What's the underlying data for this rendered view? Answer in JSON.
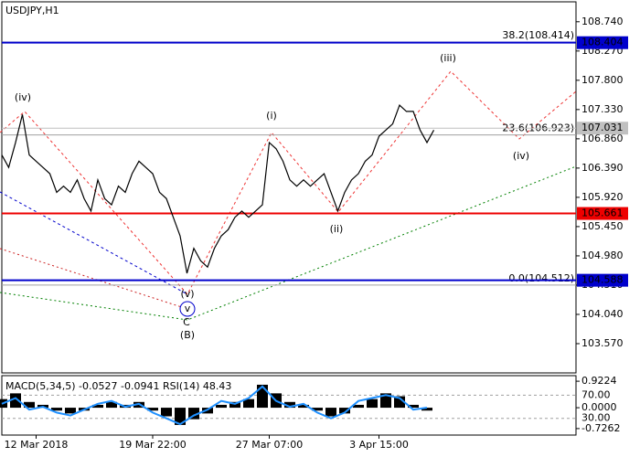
{
  "chart_data": [
    {
      "type": "line",
      "title": "USDJPY,H1",
      "categories": [
        null,
        null,
        null,
        null,
        null,
        "12 Mar 2018",
        null,
        null,
        null,
        null,
        null,
        null,
        null,
        null,
        null,
        null,
        null,
        null,
        null,
        null,
        null,
        null,
        "19 Mar 22:00",
        null,
        null,
        null,
        null,
        null,
        null,
        null,
        null,
        null,
        null,
        null,
        null,
        null,
        null,
        null,
        null,
        "27 Mar 07:00",
        null,
        null,
        null,
        null,
        null,
        null,
        null,
        null,
        null,
        null,
        null,
        null,
        null,
        null,
        null,
        "3 Apr 15:00",
        null,
        null,
        null,
        null,
        null,
        null,
        null,
        null
      ],
      "series": [
        {
          "color": "#000000",
          "values": [
            106.6,
            106.4,
            106.8,
            107.25,
            106.6,
            106.5,
            106.4,
            106.3,
            106.0,
            106.1,
            106.0,
            106.2,
            105.9,
            105.7,
            106.2,
            105.9,
            105.8,
            106.1,
            106.0,
            106.3,
            106.5,
            106.4,
            106.3,
            106.0,
            105.9,
            105.6,
            105.3,
            104.7,
            105.1,
            104.9,
            104.8,
            105.1,
            105.3,
            105.4,
            105.6,
            105.7,
            105.6,
            105.7,
            105.8,
            106.8,
            106.7,
            106.5,
            106.2,
            106.1,
            106.2,
            106.1,
            106.2,
            106.3,
            106.0,
            105.7,
            106.0,
            106.2,
            106.3,
            106.5,
            106.6,
            106.9,
            107.0,
            107.1,
            107.4,
            107.3,
            107.3,
            107.0,
            106.8,
            107.0
          ]
        }
      ],
      "ylim": [
        103.1,
        109.06
      ],
      "yticks": [
        {
          "value": 108.74,
          "label": "108.740"
        },
        {
          "value": 108.27,
          "label": "108.270"
        },
        {
          "value": 107.8,
          "label": "107.800"
        },
        {
          "value": 107.33,
          "label": "107.330"
        },
        {
          "value": 106.86,
          "label": "106.860"
        },
        {
          "value": 106.39,
          "label": "106.390"
        },
        {
          "value": 105.92,
          "label": "105.920"
        },
        {
          "value": 105.45,
          "label": "105.450"
        },
        {
          "value": 104.98,
          "label": "104.980"
        },
        {
          "value": 104.51,
          "label": "104.510"
        },
        {
          "value": 104.04,
          "label": "104.040"
        },
        {
          "value": 103.57,
          "label": "103.570"
        }
      ],
      "levels": [
        {
          "value": 108.404,
          "color": "#0000cc"
        },
        {
          "value": 107.031,
          "color": "#c0c0c0"
        },
        {
          "value": 105.661,
          "color": "#ee0000"
        },
        {
          "value": 104.588,
          "color": "#0000cc"
        }
      ],
      "fib_levels": [
        {
          "value": 108.414,
          "label": "38.2(108.414)"
        },
        {
          "value": 106.923,
          "label": "23.6(106.923)"
        },
        {
          "value": 104.512,
          "label": "0.0(104.512)"
        }
      ],
      "annotations": [
        {
          "text": "(iv)",
          "color": "#dd2200"
        },
        {
          "text": "(i)",
          "color": "#dd2200"
        },
        {
          "text": "(ii)",
          "color": "#dd2200"
        },
        {
          "text": "(iii)",
          "color": "#dd2200"
        },
        {
          "text": "(iv)",
          "color": "#dd2200"
        },
        {
          "text": "(v)",
          "color": "#dd2200"
        },
        {
          "text": "v",
          "color": "#0000cc"
        },
        {
          "text": "C",
          "color": "#dd2200"
        },
        {
          "text": "(B)",
          "color": "#008000"
        }
      ]
    },
    {
      "type": "bar",
      "title": "MACD(5,34,5) -0.0527 -0.0941 RSI(14) 48.43",
      "series": [
        {
          "color": "#000000",
          "values": [
            0.3,
            0.5,
            0.2,
            0.1,
            -0.1,
            -0.2,
            -0.1,
            0.1,
            0.2,
            0.1,
            0.2,
            -0.1,
            -0.3,
            -0.6,
            -0.4,
            -0.2,
            0.1,
            0.2,
            0.3,
            0.8,
            0.5,
            0.2,
            0.1,
            -0.1,
            -0.3,
            -0.2,
            0.1,
            0.3,
            0.5,
            0.4,
            0.1,
            -0.1
          ]
        },
        {
          "color": "#1e90ff",
          "axis": "y2",
          "values": [
            55,
            65,
            45,
            50,
            40,
            35,
            45,
            55,
            60,
            50,
            55,
            40,
            30,
            20,
            35,
            45,
            60,
            55,
            65,
            85,
            60,
            50,
            55,
            40,
            30,
            40,
            60,
            65,
            70,
            65,
            45,
            48.43
          ]
        }
      ],
      "ylim": [
        -0.952,
        1.116
      ],
      "yticks": [
        {
          "value": 0.9224,
          "label": "0.9224"
        },
        {
          "value": 0,
          "label": "0.0000"
        },
        {
          "value": -0.7262,
          "label": "-0.7262"
        }
      ],
      "y2lim": [
        1.2,
        103.6
      ],
      "y2ticks": [
        {
          "value": 70,
          "label": "70.00"
        },
        {
          "value": 30,
          "label": "30.00"
        }
      ]
    }
  ]
}
